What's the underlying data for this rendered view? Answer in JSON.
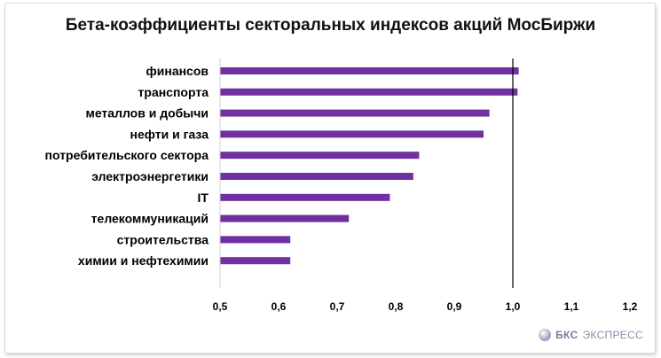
{
  "chart_data": {
    "type": "bar",
    "orientation": "horizontal",
    "title": "Бета-коэффициенты секторальных индексов акций МосБиржи",
    "categories": [
      "финансов",
      "транспорта",
      "металлов и добычи",
      "нефти и газа",
      "потребительского сектора",
      "электроэнергетики",
      "IT",
      "телекоммуникаций",
      "строительства",
      "химии и нефтехимии"
    ],
    "values": [
      1.01,
      1.008,
      0.96,
      0.95,
      0.84,
      0.83,
      0.79,
      0.72,
      0.62,
      0.62
    ],
    "xlim": [
      0.5,
      1.2
    ],
    "xticks": [
      0.5,
      0.6,
      0.7,
      0.8,
      0.9,
      1.0,
      1.1,
      1.2
    ],
    "xtick_labels": [
      "0,5",
      "0,6",
      "0,7",
      "0,8",
      "0,9",
      "1,0",
      "1,1",
      "1,2"
    ],
    "reference_line": 1.0,
    "bar_color": "#7030a0",
    "grid": false,
    "legend": "none"
  },
  "watermark": {
    "brand": "БКС",
    "product": "ЭКСПРЕСС"
  }
}
